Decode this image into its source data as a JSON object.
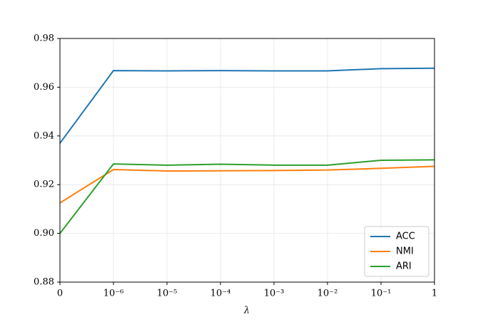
{
  "chart_data": {
    "type": "line",
    "x_label": "λ",
    "categories": [
      "0",
      "10⁻⁶",
      "10⁻⁵",
      "10⁻⁴",
      "10⁻³",
      "10⁻²",
      "10⁻¹",
      "1"
    ],
    "series": [
      {
        "name": "ACC",
        "color": "#1f77b4",
        "values": [
          0.937,
          0.9668,
          0.9667,
          0.9668,
          0.9667,
          0.9667,
          0.9676,
          0.9678
        ]
      },
      {
        "name": "NMI",
        "color": "#ff7f0e",
        "values": [
          0.9125,
          0.9262,
          0.9256,
          0.9257,
          0.9258,
          0.926,
          0.9267,
          0.9275
        ]
      },
      {
        "name": "ARI",
        "color": "#2ca02c",
        "values": [
          0.9,
          0.9285,
          0.928,
          0.9284,
          0.928,
          0.928,
          0.93,
          0.9302
        ]
      }
    ],
    "ylim": [
      0.88,
      0.98
    ],
    "yticks": [
      0.88,
      {
        "value": 0.9,
        "label": "0.90"
      },
      0.92,
      0.94,
      0.96,
      0.98
    ],
    "grid": true,
    "legend": "lower right"
  }
}
